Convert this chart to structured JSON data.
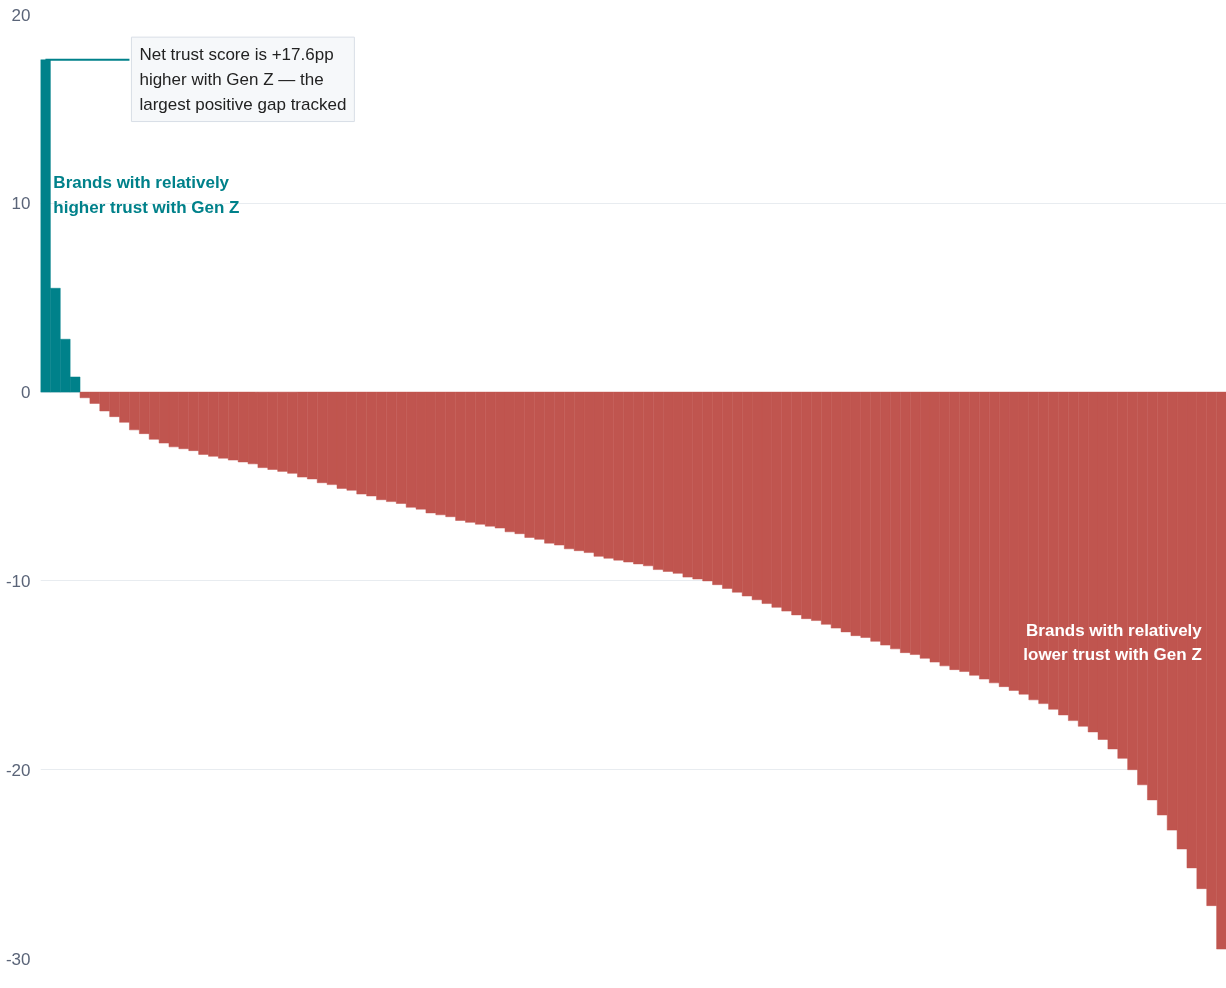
{
  "chart_data": {
    "type": "bar",
    "categories": [
      null,
      null,
      null,
      null,
      null,
      null,
      null,
      null,
      null,
      null,
      null,
      null,
      null,
      null,
      null,
      null,
      null,
      null,
      null,
      null,
      null,
      null,
      null,
      null,
      null,
      null,
      null,
      null,
      null,
      null,
      null,
      null,
      null,
      null,
      null,
      null,
      null,
      null,
      null,
      null,
      null,
      null,
      null,
      null,
      null,
      null,
      null,
      null,
      null,
      null,
      null,
      null,
      null,
      null,
      null,
      null,
      null,
      null,
      null,
      null,
      null,
      null,
      null,
      null,
      null,
      null,
      null,
      null,
      null,
      null,
      null,
      null,
      null,
      null,
      null,
      null,
      null,
      null,
      null,
      null,
      null,
      null,
      null,
      null,
      null,
      null,
      null,
      null,
      null,
      null,
      null,
      null,
      null,
      null,
      null,
      null,
      null,
      null,
      null,
      null,
      null,
      null,
      null,
      null,
      null,
      null,
      null,
      null,
      null,
      null,
      null,
      null,
      null,
      null,
      null,
      null,
      null,
      null,
      null,
      null
    ],
    "values": [
      17.6,
      5.5,
      2.8,
      0.8,
      -0.3,
      -0.6,
      -1.0,
      -1.3,
      -1.6,
      -2.0,
      -2.2,
      -2.5,
      -2.7,
      -2.9,
      -3.0,
      -3.1,
      -3.3,
      -3.4,
      -3.5,
      -3.6,
      -3.7,
      -3.8,
      -4.0,
      -4.1,
      -4.2,
      -4.3,
      -4.5,
      -4.6,
      -4.8,
      -4.9,
      -5.1,
      -5.2,
      -5.4,
      -5.5,
      -5.7,
      -5.8,
      -5.9,
      -6.1,
      -6.2,
      -6.4,
      -6.5,
      -6.6,
      -6.8,
      -6.9,
      -7.0,
      -7.1,
      -7.2,
      -7.4,
      -7.5,
      -7.7,
      -7.8,
      -8.0,
      -8.1,
      -8.3,
      -8.4,
      -8.5,
      -8.7,
      -8.8,
      -8.9,
      -9.0,
      -9.1,
      -9.2,
      -9.4,
      -9.5,
      -9.6,
      -9.8,
      -9.9,
      -10.0,
      -10.2,
      -10.4,
      -10.6,
      -10.8,
      -11.0,
      -11.2,
      -11.4,
      -11.6,
      -11.8,
      -12.0,
      -12.1,
      -12.3,
      -12.5,
      -12.7,
      -12.9,
      -13.0,
      -13.2,
      -13.4,
      -13.6,
      -13.8,
      -13.9,
      -14.1,
      -14.3,
      -14.5,
      -14.7,
      -14.8,
      -15.0,
      -15.2,
      -15.4,
      -15.6,
      -15.8,
      -16.0,
      -16.3,
      -16.5,
      -16.8,
      -17.1,
      -17.4,
      -17.7,
      -18.0,
      -18.4,
      -18.9,
      -19.4,
      -20.0,
      -20.8,
      -21.6,
      -22.4,
      -23.2,
      -24.2,
      -25.2,
      -26.3,
      -27.2,
      -29.5
    ],
    "colors": [
      "#00818a",
      "#00818a",
      "#00818a",
      "#00818a",
      "#c0554f",
      "#c0554f",
      "#c0554f",
      "#c0554f",
      "#c0554f",
      "#c0554f",
      "#c0554f",
      "#c0554f",
      "#c0554f",
      "#c0554f",
      "#c0554f",
      "#c0554f",
      "#c0554f",
      "#c0554f",
      "#c0554f",
      "#c0554f",
      "#c0554f",
      "#c0554f",
      "#c0554f",
      "#c0554f",
      "#c0554f",
      "#c0554f",
      "#c0554f",
      "#c0554f",
      "#c0554f",
      "#c0554f",
      "#c0554f",
      "#c0554f",
      "#c0554f",
      "#c0554f",
      "#c0554f",
      "#c0554f",
      "#c0554f",
      "#c0554f",
      "#c0554f",
      "#c0554f",
      "#c0554f",
      "#c0554f",
      "#c0554f",
      "#c0554f",
      "#c0554f",
      "#c0554f",
      "#c0554f",
      "#c0554f",
      "#c0554f",
      "#c0554f",
      "#c0554f",
      "#c0554f",
      "#c0554f",
      "#c0554f",
      "#c0554f",
      "#c0554f",
      "#c0554f",
      "#c0554f",
      "#c0554f",
      "#c0554f",
      "#c0554f",
      "#c0554f",
      "#c0554f",
      "#c0554f",
      "#c0554f",
      "#c0554f",
      "#c0554f",
      "#c0554f",
      "#c0554f",
      "#c0554f",
      "#c0554f",
      "#c0554f",
      "#c0554f",
      "#c0554f",
      "#c0554f",
      "#c0554f",
      "#c0554f",
      "#c0554f",
      "#c0554f",
      "#c0554f",
      "#c0554f",
      "#c0554f",
      "#c0554f",
      "#c0554f",
      "#c0554f",
      "#c0554f",
      "#c0554f",
      "#c0554f",
      "#c0554f",
      "#c0554f",
      "#c0554f",
      "#c0554f",
      "#c0554f",
      "#c0554f",
      "#c0554f",
      "#c0554f",
      "#c0554f",
      "#c0554f",
      "#c0554f",
      "#c0554f",
      "#c0554f",
      "#c0554f",
      "#c0554f",
      "#c0554f",
      "#c0554f",
      "#c0554f",
      "#c0554f",
      "#c0554f",
      "#c0554f",
      "#c0554f",
      "#c0554f",
      "#c0554f",
      "#c0554f",
      "#c0554f",
      "#c0554f",
      "#c0554f",
      "#c0554f",
      "#c0554f",
      "#c0554f",
      "#c0554f"
    ],
    "ylim": [
      -30,
      20
    ],
    "yticks": [
      20,
      10,
      0,
      -10,
      -20,
      -30
    ],
    "grid": "y",
    "annotations": [
      "Net trust score is +17.6pp higher with Gen Z — the largest positive gap tracked",
      "Brands with relatively higher trust with Gen Z",
      "Brands with relatively lower trust with Gen Z"
    ]
  }
}
